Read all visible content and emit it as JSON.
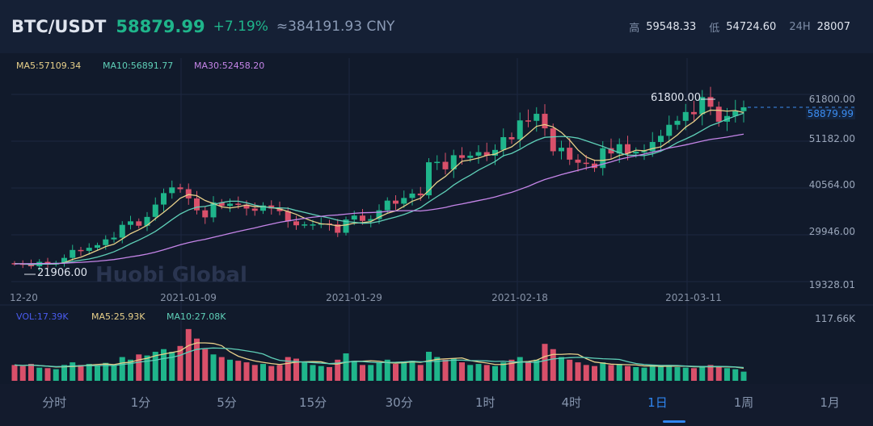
{
  "header": {
    "pair": "BTC/USDT",
    "price": "58879.99",
    "change": "+7.19%",
    "cny": "≈384191.93 CNY",
    "high_label": "高",
    "high": "59548.33",
    "low_label": "低",
    "low": "54724.60",
    "vol_label": "24H",
    "vol": "28007"
  },
  "indicators": {
    "ma5": "MA5:57109.34",
    "ma10": "MA10:56891.77",
    "ma30": "MA30:52458.20"
  },
  "vol_indicators": {
    "vol": "VOL:17.39K",
    "ma5": "MA5:25.93K",
    "ma10": "MA10:27.08K"
  },
  "price_axis": [
    "61800.00",
    "51182.00",
    "40564.00",
    "29946.00",
    "19328.01"
  ],
  "vol_axis": "117.66K",
  "current_price": "58879.99",
  "high_marker": "61800.00",
  "low_marker": "21906.00",
  "watermark": "Huobi Global",
  "dates": [
    "12-20",
    "2021-01-09",
    "2021-01-29",
    "2021-02-18",
    "2021-03-11"
  ],
  "tabs": [
    {
      "label": "分时"
    },
    {
      "label": "1分"
    },
    {
      "label": "5分"
    },
    {
      "label": "15分"
    },
    {
      "label": "30分"
    },
    {
      "label": "1时"
    },
    {
      "label": "4时"
    },
    {
      "label": "1日",
      "active": true
    },
    {
      "label": "1周"
    },
    {
      "label": "1月"
    }
  ],
  "colors": {
    "up": "#1fb58b",
    "down": "#d9506a",
    "ma5": "#e8d08a",
    "ma10": "#5fd0b8",
    "ma30": "#c585e8",
    "vol": "#4a5cf0"
  },
  "chart_data": {
    "type": "candlestick",
    "start": "2020-12-20",
    "open_first": 23500,
    "closes": [
      23400,
      23300,
      22800,
      23800,
      23200,
      23600,
      24700,
      26500,
      26300,
      27000,
      27600,
      28900,
      29300,
      32200,
      33000,
      32000,
      34000,
      36800,
      39400,
      40700,
      40300,
      38200,
      35500,
      33900,
      37300,
      36500,
      37000,
      36800,
      35900,
      35400,
      36600,
      35900,
      35300,
      33000,
      32100,
      32300,
      32300,
      32500,
      32300,
      30400,
      33400,
      34300,
      33100,
      33500,
      35500,
      37700,
      37000,
      38300,
      39300,
      38900,
      46400,
      46500,
      44800,
      48000,
      47400,
      47900,
      48700,
      47900,
      49200,
      52100,
      51600,
      55900,
      55800,
      57400,
      54100,
      48900,
      49700,
      47000,
      46300,
      46100,
      45100,
      49600,
      48400,
      50500,
      48400,
      48800,
      48900,
      51000,
      52400,
      54900,
      55800,
      57800,
      57300,
      61200,
      59000,
      55600,
      56900,
      58000,
      58880
    ],
    "volumes_k": [
      30,
      28,
      32,
      25,
      24,
      22,
      30,
      35,
      30,
      32,
      28,
      34,
      30,
      45,
      40,
      50,
      48,
      55,
      60,
      55,
      66,
      98,
      80,
      60,
      50,
      45,
      40,
      38,
      35,
      30,
      32,
      28,
      30,
      45,
      42,
      35,
      30,
      28,
      26,
      40,
      52,
      38,
      30,
      30,
      35,
      40,
      32,
      35,
      38,
      30,
      55,
      45,
      40,
      42,
      35,
      30,
      32,
      30,
      28,
      35,
      40,
      45,
      35,
      40,
      70,
      60,
      45,
      40,
      35,
      30,
      28,
      35,
      30,
      32,
      28,
      26,
      25,
      30,
      28,
      30,
      26,
      25,
      24,
      28,
      30,
      26,
      24,
      22,
      17.39
    ],
    "ylim": [
      19328.01,
      61800
    ],
    "vol_max_k": 117.66
  }
}
